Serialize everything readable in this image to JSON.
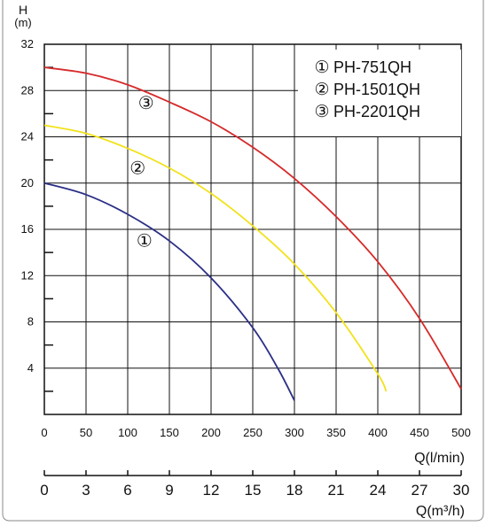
{
  "chart_data": {
    "type": "line",
    "ylabel": "H",
    "ylabel_unit": "(m)",
    "xlabel": "Q(l/min)",
    "xlabel_secondary": "Q(m³/h)",
    "xlim": [
      0,
      500
    ],
    "ylim": [
      0,
      32
    ],
    "grid": true,
    "x_ticks": [
      0,
      50,
      100,
      150,
      200,
      250,
      300,
      350,
      400,
      450,
      500
    ],
    "y_ticks": [
      4,
      8,
      12,
      16,
      20,
      24,
      28,
      32
    ],
    "x_ticks_secondary": [
      0,
      3,
      6,
      9,
      12,
      15,
      18,
      21,
      24,
      27,
      30
    ],
    "legend_position": "top-right",
    "series": [
      {
        "name": "PH-751QH",
        "marker": "①",
        "color": "#2b2f86",
        "x": [
          0,
          50,
          100,
          150,
          200,
          250,
          280,
          300
        ],
        "y": [
          20,
          19,
          17.3,
          15,
          11.8,
          7.5,
          4,
          1.2
        ]
      },
      {
        "name": "PH-1501QH",
        "marker": "②",
        "color": "#f2e21a",
        "x": [
          0,
          50,
          100,
          150,
          200,
          250,
          300,
          350,
          400,
          410
        ],
        "y": [
          25,
          24.3,
          23,
          21.3,
          19.1,
          16.3,
          13,
          8.8,
          3.5,
          2
        ]
      },
      {
        "name": "PH-2201QH",
        "marker": "③",
        "color": "#d62a2a",
        "x": [
          0,
          50,
          100,
          150,
          200,
          250,
          300,
          350,
          400,
          450,
          500
        ],
        "y": [
          30,
          29.5,
          28.5,
          27,
          25.3,
          23.1,
          20.4,
          17.1,
          13.2,
          8.3,
          2.2
        ]
      }
    ]
  }
}
